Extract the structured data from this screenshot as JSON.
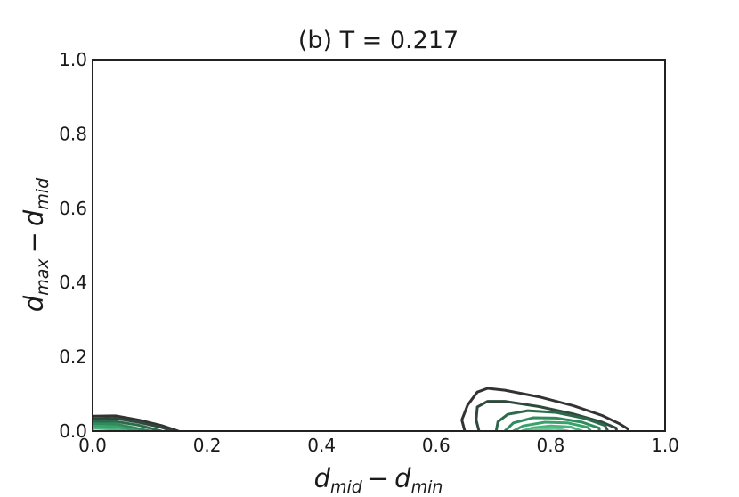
{
  "chart_data": {
    "type": "contour",
    "title": "(b)  T = 0.217",
    "xlabel": {
      "base": "d",
      "sub1": "mid",
      "op": "−",
      "base2": "d",
      "sub2": "min"
    },
    "ylabel": {
      "base": "d",
      "sub1": "max",
      "op": "−",
      "base2": "d",
      "sub2": "mid"
    },
    "xlim": [
      0.0,
      1.0
    ],
    "ylim": [
      0.0,
      1.0
    ],
    "xticks": [
      "0.0",
      "0.2",
      "0.4",
      "0.6",
      "0.8",
      "1.0"
    ],
    "yticks": [
      "0.0",
      "0.2",
      "0.4",
      "0.6",
      "0.8",
      "1.0"
    ],
    "xtick_values": [
      0.0,
      0.2,
      0.4,
      0.6,
      0.8,
      1.0
    ],
    "ytick_values": [
      0.0,
      0.2,
      0.4,
      0.6,
      0.8,
      1.0
    ],
    "grid": false,
    "colormap": [
      "#333333",
      "#2e4a3c",
      "#2d6a4c",
      "#2f8a5c",
      "#3aa06c",
      "#4fb57e",
      "#6cc893"
    ],
    "clusters": [
      {
        "name": "cluster-left",
        "levels": [
          [
            [
              0.0,
              0.0
            ],
            [
              0.0,
              0.04
            ],
            [
              0.04,
              0.041
            ],
            [
              0.08,
              0.03
            ],
            [
              0.12,
              0.015
            ],
            [
              0.15,
              0.0
            ]
          ],
          [
            [
              0.0,
              0.0
            ],
            [
              0.0,
              0.033
            ],
            [
              0.04,
              0.034
            ],
            [
              0.08,
              0.024
            ],
            [
              0.12,
              0.01
            ],
            [
              0.14,
              0.0
            ]
          ],
          [
            [
              0.0,
              0.0
            ],
            [
              0.0,
              0.026
            ],
            [
              0.04,
              0.026
            ],
            [
              0.08,
              0.016
            ],
            [
              0.12,
              0.0
            ]
          ],
          [
            [
              0.0,
              0.0
            ],
            [
              0.0,
              0.02
            ],
            [
              0.04,
              0.019
            ],
            [
              0.07,
              0.01
            ],
            [
              0.1,
              0.0
            ]
          ],
          [
            [
              0.0,
              0.0
            ],
            [
              0.0,
              0.014
            ],
            [
              0.04,
              0.012
            ],
            [
              0.08,
              0.0
            ]
          ],
          [
            [
              0.0,
              0.0
            ],
            [
              0.0,
              0.008
            ],
            [
              0.03,
              0.006
            ],
            [
              0.06,
              0.0
            ]
          ]
        ]
      },
      {
        "name": "cluster-right",
        "levels": [
          [
            [
              0.65,
              0.0
            ],
            [
              0.645,
              0.03
            ],
            [
              0.655,
              0.07
            ],
            [
              0.672,
              0.105
            ],
            [
              0.69,
              0.115
            ],
            [
              0.72,
              0.11
            ],
            [
              0.78,
              0.092
            ],
            [
              0.84,
              0.068
            ],
            [
              0.89,
              0.042
            ],
            [
              0.92,
              0.02
            ],
            [
              0.935,
              0.006
            ],
            [
              0.935,
              0.0
            ]
          ],
          [
            [
              0.675,
              0.0
            ],
            [
              0.67,
              0.03
            ],
            [
              0.672,
              0.065
            ],
            [
              0.69,
              0.08
            ],
            [
              0.72,
              0.08
            ],
            [
              0.78,
              0.066
            ],
            [
              0.84,
              0.046
            ],
            [
              0.89,
              0.024
            ],
            [
              0.915,
              0.008
            ],
            [
              0.915,
              0.0
            ]
          ],
          [
            [
              0.705,
              0.0
            ],
            [
              0.708,
              0.025
            ],
            [
              0.725,
              0.045
            ],
            [
              0.76,
              0.055
            ],
            [
              0.81,
              0.05
            ],
            [
              0.86,
              0.034
            ],
            [
              0.895,
              0.015
            ],
            [
              0.9,
              0.0
            ]
          ],
          [
            [
              0.72,
              0.0
            ],
            [
              0.735,
              0.022
            ],
            [
              0.77,
              0.036
            ],
            [
              0.81,
              0.035
            ],
            [
              0.855,
              0.024
            ],
            [
              0.885,
              0.008
            ],
            [
              0.885,
              0.0
            ]
          ],
          [
            [
              0.735,
              0.0
            ],
            [
              0.752,
              0.014
            ],
            [
              0.79,
              0.024
            ],
            [
              0.83,
              0.022
            ],
            [
              0.865,
              0.01
            ],
            [
              0.87,
              0.0
            ]
          ],
          [
            [
              0.75,
              0.0
            ],
            [
              0.77,
              0.009
            ],
            [
              0.8,
              0.014
            ],
            [
              0.835,
              0.011
            ],
            [
              0.855,
              0.0
            ]
          ],
          [
            [
              0.765,
              0.0
            ],
            [
              0.785,
              0.005
            ],
            [
              0.81,
              0.007
            ],
            [
              0.83,
              0.0
            ]
          ]
        ]
      }
    ]
  }
}
